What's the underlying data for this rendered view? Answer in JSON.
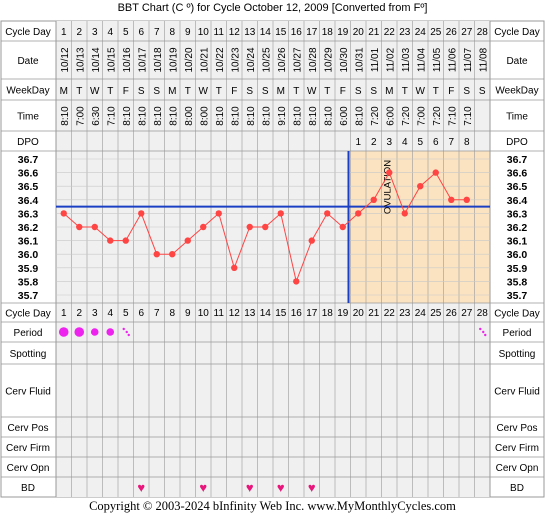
{
  "title": "BBT Chart (C º) for Cycle October 12, 2009  [Converted from Fº]",
  "footer": "Copyright © 2003-2024 bInfinity Web Inc.    www.MyMonthlyCycles.com",
  "row_labels": {
    "cycle_day": "Cycle Day",
    "date": "Date",
    "weekday": "WeekDay",
    "time": "Time",
    "dpo": "DPO",
    "period": "Period",
    "spotting": "Spotting",
    "cerv_fluid": "Cerv Fluid",
    "cerv_pos": "Cerv Pos",
    "cerv_firm": "Cerv Firm",
    "cerv_opn": "Cerv Opn",
    "bd": "BD"
  },
  "ovulation_label": "OVULATION",
  "colors": {
    "grid_bg": "#f0f0f0",
    "grid_line": "#999999",
    "luteal_bg": "#fbe3c2",
    "temp_line": "#ff4444",
    "coverline": "#1a3fc4",
    "heart": "#e8157a",
    "period_dot": "#ee22ee"
  },
  "chart_data": {
    "type": "line",
    "cycle_days": [
      1,
      2,
      3,
      4,
      5,
      6,
      7,
      8,
      9,
      10,
      11,
      12,
      13,
      14,
      15,
      16,
      17,
      18,
      19,
      20,
      21,
      22,
      23,
      24,
      25,
      26,
      27,
      28
    ],
    "dates": [
      "10/12",
      "10/13",
      "10/14",
      "10/15",
      "10/16",
      "10/17",
      "10/18",
      "10/19",
      "10/20",
      "10/21",
      "10/22",
      "10/23",
      "10/24",
      "10/25",
      "10/26",
      "10/27",
      "10/28",
      "10/29",
      "10/30",
      "10/31",
      "11/01",
      "11/02",
      "11/03",
      "11/04",
      "11/05",
      "11/06",
      "11/07",
      "11/08"
    ],
    "weekdays": [
      "M",
      "T",
      "W",
      "T",
      "F",
      "S",
      "S",
      "M",
      "T",
      "W",
      "T",
      "F",
      "S",
      "S",
      "M",
      "T",
      "W",
      "T",
      "F",
      "S",
      "S",
      "M",
      "T",
      "W",
      "T",
      "F",
      "S",
      "S"
    ],
    "times": [
      "8:10",
      "7:00",
      "6:30",
      "7:10",
      "8:10",
      "8:10",
      "8:10",
      "8:10",
      "8:00",
      "8:00",
      "8:10",
      "8:10",
      "8:10",
      "8:10",
      "9:10",
      "8:10",
      "8:10",
      "8:10",
      "6:00",
      "8:10",
      "7:20",
      "6:00",
      "7:20",
      "7:00",
      "7:20",
      "7:10",
      "7:10",
      ""
    ],
    "dpo": [
      "",
      "",
      "",
      "",
      "",
      "",
      "",
      "",
      "",
      "",
      "",
      "",
      "",
      "",
      "",
      "",
      "",
      "",
      "",
      "1",
      "2",
      "3",
      "4",
      "5",
      "6",
      "7",
      "8",
      ""
    ],
    "temps": [
      36.3,
      36.2,
      36.2,
      36.1,
      36.1,
      36.3,
      36.0,
      36.0,
      36.1,
      36.2,
      36.3,
      35.9,
      36.2,
      36.2,
      36.3,
      35.8,
      36.1,
      36.3,
      36.2,
      36.3,
      36.4,
      36.6,
      36.3,
      36.5,
      36.6,
      36.4,
      36.4,
      null
    ],
    "y_ticks": [
      "36.7",
      "36.6",
      "36.5",
      "36.4",
      "36.3",
      "36.2",
      "36.1",
      "36.0",
      "35.9",
      "35.8",
      "35.7"
    ],
    "ylim": [
      35.7,
      36.7
    ],
    "coverline": 36.35,
    "ovulation_day": 19,
    "period": [
      3,
      3,
      2,
      2,
      1,
      0,
      0,
      0,
      0,
      0,
      0,
      0,
      0,
      0,
      0,
      0,
      0,
      0,
      0,
      0,
      0,
      0,
      0,
      0,
      0,
      0,
      0,
      1
    ],
    "bd_days": [
      6,
      10,
      13,
      15,
      17
    ]
  }
}
